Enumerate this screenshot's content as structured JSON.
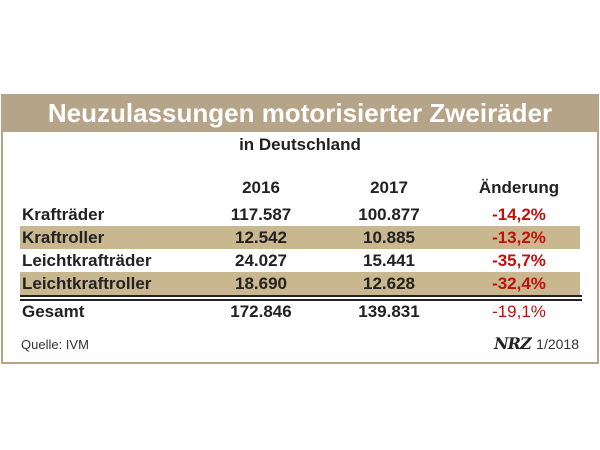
{
  "title": "Neuzulassungen motorisierter Zweiräder",
  "subtitle": "in Deutschland",
  "headers": [
    "",
    "2016",
    "2017",
    "Änderung"
  ],
  "rows": [
    {
      "label": "Krafträder",
      "v2016": "117.587",
      "v2017": "100.877",
      "change": "-14,2%"
    },
    {
      "label": "Kraftroller",
      "v2016": "12.542",
      "v2017": "10.885",
      "change": "-13,2%"
    },
    {
      "label": "Leichtkrafträder",
      "v2016": "24.027",
      "v2017": "15.441",
      "change": "-35,7%"
    },
    {
      "label": "Leichtkraftroller",
      "v2016": "18.690",
      "v2017": "12.628",
      "change": "-32,4%"
    }
  ],
  "total": {
    "label": "Gesamt",
    "v2016": "172.846",
    "v2017": "139.831",
    "change": "-19,1%"
  },
  "source": "Quelle: IVM",
  "brand": {
    "logo": "NRZ",
    "date": "1/2018"
  },
  "colors": {
    "accent": "#b5a487",
    "stripe": "#c9b78f",
    "negative": "#c0100c"
  }
}
